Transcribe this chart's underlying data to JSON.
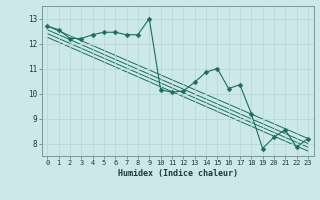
{
  "xlabel": "Humidex (Indice chaleur)",
  "bg_color": "#cce8e8",
  "grid_color": "#b8d8d8",
  "line_color": "#1a6e5e",
  "xlim": [
    -0.5,
    23.5
  ],
  "ylim": [
    7.5,
    13.5
  ],
  "xticks": [
    0,
    1,
    2,
    3,
    4,
    5,
    6,
    7,
    8,
    9,
    10,
    11,
    12,
    13,
    14,
    15,
    16,
    17,
    18,
    19,
    20,
    21,
    22,
    23
  ],
  "yticks": [
    8,
    9,
    10,
    11,
    12,
    13
  ],
  "main_line_x": [
    0,
    1,
    2,
    3,
    4,
    5,
    6,
    7,
    8,
    9,
    10,
    11,
    12,
    13,
    14,
    15,
    16,
    17,
    18,
    19,
    20,
    21,
    22,
    23
  ],
  "main_line_y": [
    12.7,
    12.55,
    12.2,
    12.2,
    12.35,
    12.45,
    12.45,
    12.35,
    12.35,
    13.0,
    10.15,
    10.05,
    10.1,
    10.45,
    10.85,
    11.0,
    10.2,
    10.35,
    9.2,
    7.8,
    8.25,
    8.55,
    7.85,
    8.2
  ],
  "diag_lines": [
    {
      "x": [
        0,
        23
      ],
      "y": [
        12.7,
        8.2
      ]
    },
    {
      "x": [
        0,
        23
      ],
      "y": [
        12.55,
        8.0
      ]
    },
    {
      "x": [
        0,
        23
      ],
      "y": [
        12.4,
        7.85
      ]
    },
    {
      "x": [
        0,
        23
      ],
      "y": [
        12.25,
        7.7
      ]
    }
  ],
  "markersize": 2.5
}
